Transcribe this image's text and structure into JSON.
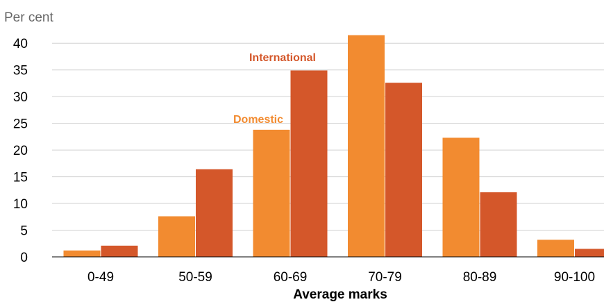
{
  "chart_data": {
    "type": "bar",
    "unit_label": "Per cent",
    "xlabel": "Average marks",
    "ylabel": "",
    "ylim": [
      0,
      42.5
    ],
    "yticks": [
      0,
      5,
      10,
      15,
      20,
      25,
      30,
      35,
      40
    ],
    "categories": [
      "0-49",
      "50-59",
      "60-69",
      "70-79",
      "80-89",
      "90-100"
    ],
    "series": [
      {
        "name": "Domestic",
        "color": "#f28b30",
        "values": [
          1.2,
          7.6,
          23.8,
          41.5,
          22.3,
          3.2
        ]
      },
      {
        "name": "International",
        "color": "#d4572a",
        "values": [
          2.1,
          16.4,
          34.9,
          32.6,
          12.1,
          1.5
        ]
      }
    ],
    "grid": true,
    "legend": "inline labels above bars"
  }
}
